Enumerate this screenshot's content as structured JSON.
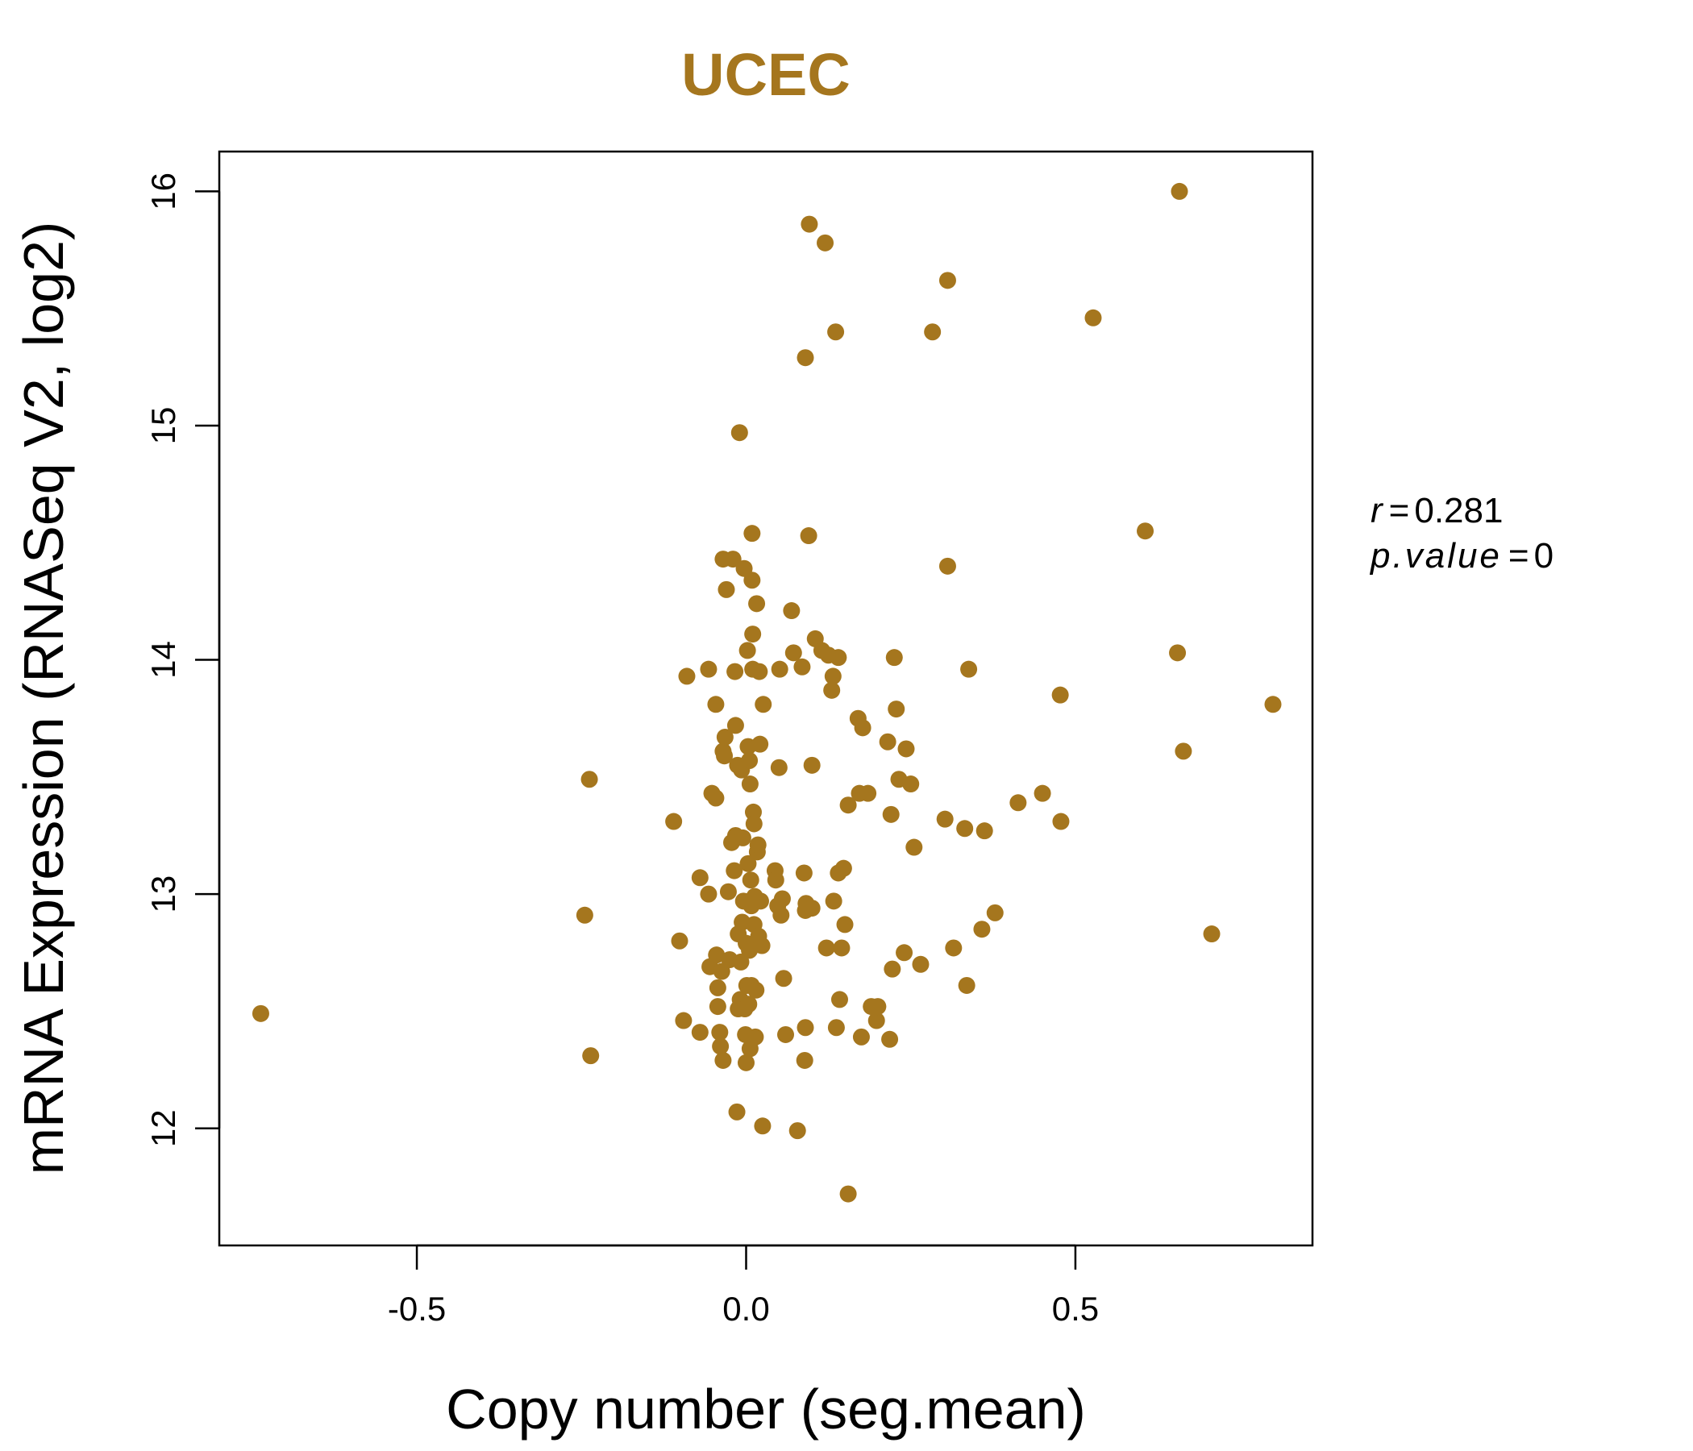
{
  "colors": {
    "accent": "#a5761e",
    "axis": "#000000",
    "background": "#ffffff"
  },
  "chart_data": {
    "type": "scatter",
    "title": "UCEC",
    "xlabel": "Copy number (seg.mean)",
    "ylabel": "mRNA Expression (RNASeq V2, log2)",
    "xlim": [
      -0.8,
      0.86
    ],
    "ylim": [
      11.5,
      16.17
    ],
    "x_ticks": [
      -0.5,
      0.0,
      0.5
    ],
    "x_tick_labels": [
      "-0.5",
      "0.0",
      "0.5"
    ],
    "y_ticks": [
      12,
      13,
      14,
      15,
      16
    ],
    "y_tick_labels": [
      "12",
      "13",
      "14",
      "15",
      "16"
    ],
    "grid": false,
    "annotation": {
      "r_symbol": "r",
      "r_value": "0.281",
      "p_symbol": "p.value",
      "p_value": "0"
    },
    "points": [
      [
        -0.737,
        12.49
      ],
      [
        -0.245,
        12.91
      ],
      [
        -0.238,
        13.49
      ],
      [
        -0.236,
        12.31
      ],
      [
        -0.11,
        13.31
      ],
      [
        -0.101,
        12.8
      ],
      [
        -0.095,
        12.46
      ],
      [
        -0.09,
        13.93
      ],
      [
        -0.07,
        12.41
      ],
      [
        -0.07,
        13.07
      ],
      [
        -0.057,
        13.96
      ],
      [
        -0.057,
        13.0
      ],
      [
        -0.055,
        12.69
      ],
      [
        -0.052,
        13.43
      ],
      [
        -0.046,
        13.41
      ],
      [
        -0.046,
        13.81
      ],
      [
        -0.045,
        12.74
      ],
      [
        -0.043,
        12.52
      ],
      [
        -0.043,
        12.6
      ],
      [
        -0.04,
        12.41
      ],
      [
        -0.039,
        12.35
      ],
      [
        -0.037,
        12.67
      ],
      [
        -0.035,
        12.29
      ],
      [
        -0.035,
        13.61
      ],
      [
        -0.035,
        14.43
      ],
      [
        -0.033,
        13.59
      ],
      [
        -0.032,
        13.67
      ],
      [
        -0.03,
        14.3
      ],
      [
        -0.027,
        13.01
      ],
      [
        -0.025,
        12.72
      ],
      [
        -0.022,
        13.22
      ],
      [
        -0.02,
        14.43
      ],
      [
        -0.018,
        13.1
      ],
      [
        -0.017,
        13.95
      ],
      [
        -0.016,
        13.25
      ],
      [
        -0.016,
        13.72
      ],
      [
        -0.014,
        12.07
      ],
      [
        -0.013,
        13.55
      ],
      [
        -0.012,
        12.83
      ],
      [
        -0.012,
        12.51
      ],
      [
        -0.01,
        14.97
      ],
      [
        -0.009,
        12.55
      ],
      [
        -0.008,
        12.71
      ],
      [
        -0.007,
        13.53
      ],
      [
        -0.006,
        12.88
      ],
      [
        -0.005,
        13.24
      ],
      [
        -0.004,
        12.97
      ],
      [
        -0.003,
        14.39
      ],
      [
        -0.002,
        12.51
      ],
      [
        -0.001,
        12.4
      ],
      [
        0.0,
        12.79
      ],
      [
        0.0,
        12.28
      ],
      [
        0.001,
        12.61
      ],
      [
        0.002,
        14.04
      ],
      [
        0.003,
        13.63
      ],
      [
        0.003,
        13.13
      ],
      [
        0.004,
        12.53
      ],
      [
        0.005,
        12.76
      ],
      [
        0.005,
        13.57
      ],
      [
        0.006,
        13.47
      ],
      [
        0.006,
        12.34
      ],
      [
        0.007,
        13.06
      ],
      [
        0.008,
        12.61
      ],
      [
        0.008,
        12.95
      ],
      [
        0.009,
        14.54
      ],
      [
        0.009,
        14.34
      ],
      [
        0.01,
        14.11
      ],
      [
        0.01,
        13.96
      ],
      [
        0.011,
        13.35
      ],
      [
        0.012,
        12.87
      ],
      [
        0.012,
        13.3
      ],
      [
        0.013,
        12.99
      ],
      [
        0.014,
        12.39
      ],
      [
        0.015,
        12.59
      ],
      [
        0.016,
        14.24
      ],
      [
        0.017,
        13.18
      ],
      [
        0.018,
        13.21
      ],
      [
        0.019,
        12.82
      ],
      [
        0.02,
        13.95
      ],
      [
        0.021,
        13.64
      ],
      [
        0.022,
        12.97
      ],
      [
        0.024,
        12.78
      ],
      [
        0.025,
        12.01
      ],
      [
        0.026,
        13.81
      ],
      [
        0.044,
        13.1
      ],
      [
        0.045,
        13.06
      ],
      [
        0.048,
        12.95
      ],
      [
        0.05,
        13.54
      ],
      [
        0.051,
        13.96
      ],
      [
        0.053,
        12.91
      ],
      [
        0.055,
        12.98
      ],
      [
        0.057,
        12.64
      ],
      [
        0.06,
        12.4
      ],
      [
        0.069,
        14.21
      ],
      [
        0.072,
        14.03
      ],
      [
        0.078,
        11.99
      ],
      [
        0.085,
        13.97
      ],
      [
        0.088,
        13.09
      ],
      [
        0.089,
        12.29
      ],
      [
        0.09,
        12.93
      ],
      [
        0.09,
        12.43
      ],
      [
        0.09,
        15.29
      ],
      [
        0.091,
        12.96
      ],
      [
        0.095,
        14.53
      ],
      [
        0.096,
        15.86
      ],
      [
        0.1,
        12.94
      ],
      [
        0.1,
        13.55
      ],
      [
        0.105,
        14.09
      ],
      [
        0.115,
        14.04
      ],
      [
        0.12,
        15.78
      ],
      [
        0.122,
        12.77
      ],
      [
        0.125,
        14.02
      ],
      [
        0.13,
        13.87
      ],
      [
        0.132,
        13.93
      ],
      [
        0.133,
        12.97
      ],
      [
        0.136,
        15.4
      ],
      [
        0.137,
        12.43
      ],
      [
        0.14,
        14.01
      ],
      [
        0.14,
        13.09
      ],
      [
        0.142,
        12.55
      ],
      [
        0.145,
        12.77
      ],
      [
        0.148,
        13.11
      ],
      [
        0.15,
        12.87
      ],
      [
        0.155,
        11.72
      ],
      [
        0.155,
        13.38
      ],
      [
        0.17,
        13.75
      ],
      [
        0.172,
        13.43
      ],
      [
        0.175,
        12.39
      ],
      [
        0.177,
        13.71
      ],
      [
        0.185,
        13.43
      ],
      [
        0.19,
        12.52
      ],
      [
        0.198,
        12.46
      ],
      [
        0.2,
        12.52
      ],
      [
        0.215,
        13.65
      ],
      [
        0.218,
        12.38
      ],
      [
        0.22,
        13.34
      ],
      [
        0.222,
        12.68
      ],
      [
        0.225,
        14.01
      ],
      [
        0.228,
        13.79
      ],
      [
        0.232,
        13.49
      ],
      [
        0.24,
        12.75
      ],
      [
        0.243,
        13.62
      ],
      [
        0.25,
        13.47
      ],
      [
        0.255,
        13.2
      ],
      [
        0.265,
        12.7
      ],
      [
        0.283,
        15.4
      ],
      [
        0.302,
        13.32
      ],
      [
        0.306,
        15.62
      ],
      [
        0.306,
        14.4
      ],
      [
        0.315,
        12.77
      ],
      [
        0.332,
        13.28
      ],
      [
        0.335,
        12.61
      ],
      [
        0.338,
        13.96
      ],
      [
        0.358,
        12.85
      ],
      [
        0.362,
        13.27
      ],
      [
        0.378,
        12.92
      ],
      [
        0.413,
        13.39
      ],
      [
        0.45,
        13.43
      ],
      [
        0.477,
        13.85
      ],
      [
        0.478,
        13.31
      ],
      [
        0.527,
        15.46
      ],
      [
        0.606,
        14.55
      ],
      [
        0.655,
        14.03
      ],
      [
        0.658,
        16.0
      ],
      [
        0.664,
        13.61
      ],
      [
        0.707,
        12.83
      ],
      [
        0.8,
        13.81
      ]
    ]
  }
}
